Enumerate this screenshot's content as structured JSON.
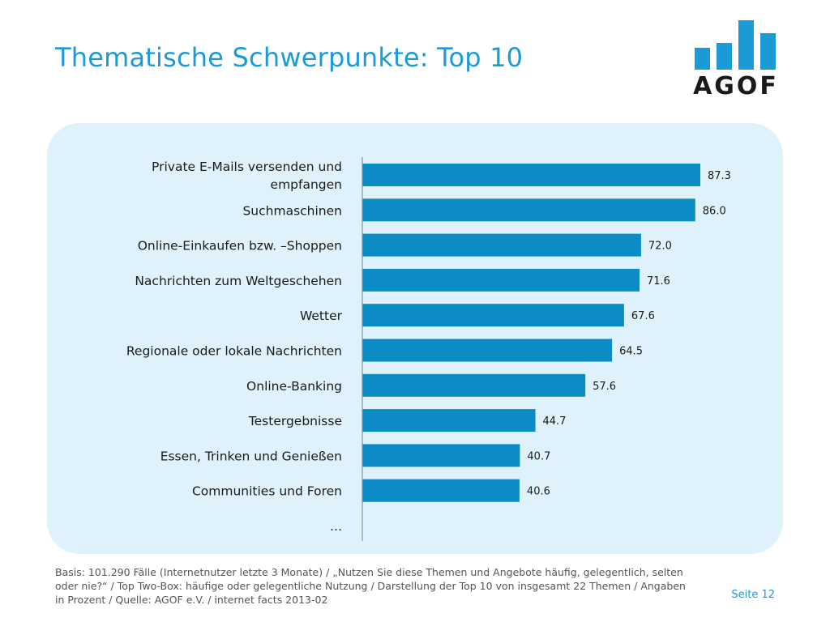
{
  "title": "Thematische Schwerpunkte: Top 10",
  "logo": {
    "text": "AGOF",
    "bar_color": "#1a9ad6"
  },
  "colors": {
    "accent": "#1a9ad6",
    "bar": "#0c8cc4",
    "panel": "#dff2fb"
  },
  "chart_data": {
    "type": "bar",
    "orientation": "horizontal",
    "categories": [
      [
        "Private E-Mails versenden und",
        "empfangen"
      ],
      [
        "Suchmaschinen"
      ],
      [
        "Online-Einkaufen bzw. –Shoppen"
      ],
      [
        "Nachrichten zum Weltgeschehen"
      ],
      [
        "Wetter"
      ],
      [
        "Regionale oder lokale Nachrichten"
      ],
      [
        "Online-Banking"
      ],
      [
        "Testergebnisse"
      ],
      [
        "Essen, Trinken und Genießen"
      ],
      [
        "Communities und Foren"
      ]
    ],
    "values": [
      87.3,
      86.0,
      72.0,
      71.6,
      67.6,
      64.5,
      57.6,
      44.7,
      40.7,
      40.6
    ],
    "trailing_label": "…",
    "xlim": [
      0,
      100
    ],
    "grid": false
  },
  "footnote": "Basis: 101.290 Fälle (Internetnutzer letzte 3 Monate) / „Nutzen Sie diese Themen und Angebote häufig, gelegentlich, selten oder nie?“ / Top Two-Box: häufige oder gelegentliche Nutzung / Darstellung der Top 10 von insgesamt 22 Themen / Angaben in Prozent / Quelle: AGOF e.V. / internet facts 2013-02",
  "page": "Seite 12"
}
